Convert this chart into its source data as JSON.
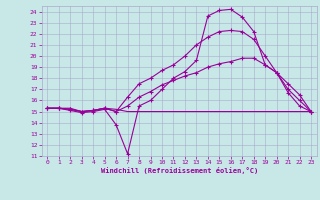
{
  "xlabel": "Windchill (Refroidissement éolien,°C)",
  "bg_color": "#c8e8e8",
  "grid_color": "#aaaacc",
  "line_color": "#990099",
  "xlim": [
    -0.5,
    23.5
  ],
  "ylim": [
    11,
    24.5
  ],
  "xticks": [
    0,
    1,
    2,
    3,
    4,
    5,
    6,
    7,
    8,
    9,
    10,
    11,
    12,
    13,
    14,
    15,
    16,
    17,
    18,
    19,
    20,
    21,
    22,
    23
  ],
  "yticks": [
    11,
    12,
    13,
    14,
    15,
    16,
    17,
    18,
    19,
    20,
    21,
    22,
    23,
    24
  ],
  "curve1_x": [
    0,
    1,
    2,
    3,
    4,
    5,
    6,
    7,
    8,
    9,
    10,
    11,
    12,
    13,
    14,
    15,
    16,
    17,
    18,
    19,
    20,
    21,
    22,
    23
  ],
  "curve1_y": [
    15.3,
    15.3,
    15.3,
    15.0,
    15.1,
    15.3,
    15.2,
    15.0,
    15.0,
    15.0,
    15.0,
    15.0,
    15.0,
    15.0,
    15.0,
    15.0,
    15.0,
    15.0,
    15.0,
    15.0,
    15.0,
    15.0,
    15.0,
    15.0
  ],
  "curve2_x": [
    0,
    1,
    2,
    3,
    4,
    5,
    6,
    7,
    8,
    9,
    10,
    11,
    12,
    13,
    14,
    15,
    16,
    17,
    18,
    19,
    20,
    21,
    22,
    23
  ],
  "curve2_y": [
    15.3,
    15.3,
    15.1,
    14.9,
    15.0,
    15.2,
    13.8,
    11.2,
    15.5,
    16.0,
    17.0,
    18.0,
    18.6,
    19.6,
    23.6,
    24.1,
    24.2,
    23.5,
    22.2,
    19.2,
    18.5,
    16.7,
    15.5,
    15.0
  ],
  "curve3_x": [
    0,
    1,
    2,
    3,
    4,
    5,
    6,
    7,
    8,
    9,
    10,
    11,
    12,
    13,
    14,
    15,
    16,
    17,
    18,
    19,
    20,
    21,
    22,
    23
  ],
  "curve3_y": [
    15.3,
    15.3,
    15.2,
    15.0,
    15.1,
    15.3,
    15.0,
    15.5,
    16.3,
    16.8,
    17.4,
    17.8,
    18.2,
    18.5,
    19.0,
    19.3,
    19.5,
    19.8,
    19.8,
    19.2,
    18.5,
    17.5,
    16.5,
    15.0
  ],
  "curve4_x": [
    0,
    1,
    2,
    3,
    4,
    5,
    6,
    7,
    8,
    9,
    10,
    11,
    12,
    13,
    14,
    15,
    16,
    17,
    18,
    19,
    20,
    21,
    22,
    23
  ],
  "curve4_y": [
    15.3,
    15.3,
    15.2,
    15.0,
    15.1,
    15.3,
    15.0,
    16.3,
    17.5,
    18.0,
    18.7,
    19.2,
    20.0,
    21.0,
    21.7,
    22.2,
    22.3,
    22.2,
    21.5,
    20.0,
    18.5,
    17.0,
    16.0,
    15.0
  ]
}
